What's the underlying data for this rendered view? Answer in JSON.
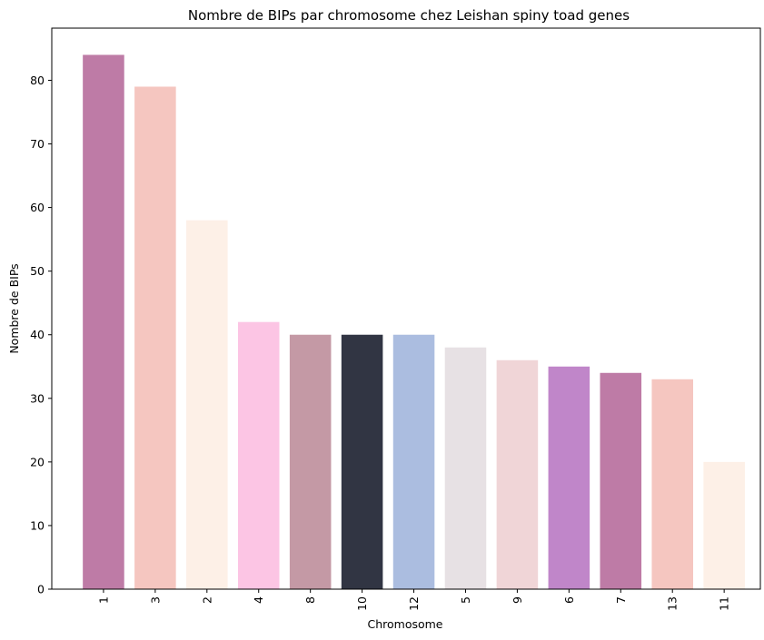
{
  "chart_data": {
    "type": "bar",
    "title": "Nombre de BIPs par chromosome chez Leishan spiny toad genes",
    "xlabel": "Chromosome",
    "ylabel": "Nombre de BIPs",
    "categories": [
      "1",
      "3",
      "2",
      "4",
      "8",
      "10",
      "12",
      "5",
      "9",
      "6",
      "7",
      "13",
      "11"
    ],
    "values": [
      84,
      79,
      58,
      42,
      40,
      40,
      40,
      38,
      36,
      35,
      34,
      33,
      20
    ],
    "colors": [
      "#be7ba6",
      "#f5c6c0",
      "#fdf0e7",
      "#fcc5e4",
      "#c499a5",
      "#313543",
      "#abbde0",
      "#e7e1e4",
      "#f0d5d7",
      "#c086c9",
      "#be7ba6",
      "#f5c6c0",
      "#fdf0e7"
    ],
    "ylim": [
      0,
      88.2
    ],
    "yticks": [
      0,
      10,
      20,
      30,
      40,
      50,
      60,
      70,
      80
    ],
    "xtick_rotation": 90,
    "grid": false,
    "legend": "none"
  }
}
